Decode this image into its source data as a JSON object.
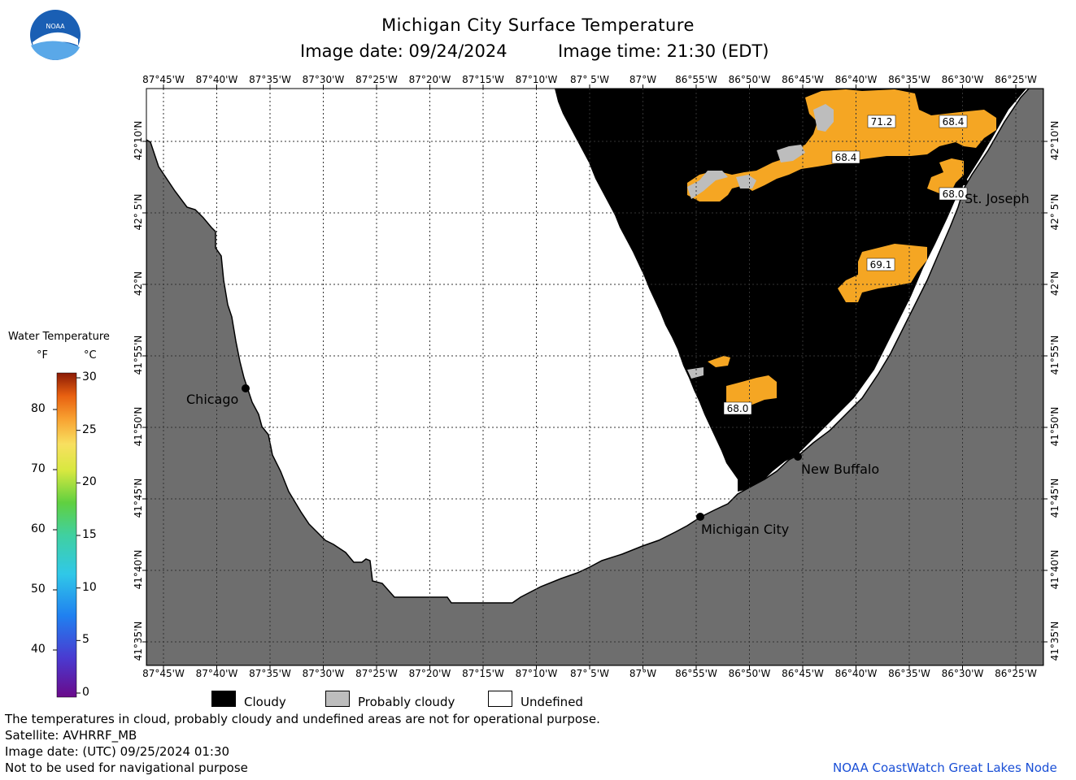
{
  "title": "Michigan City Surface Temperature",
  "image_date_local": "Image date: 09/24/2024",
  "image_time_local": "Image time: 21:30 (EDT)",
  "logo_text": "NOAA",
  "longitude_labels": [
    "87°45'W",
    "87°40'W",
    "87°35'W",
    "87°30'W",
    "87°25'W",
    "87°20'W",
    "87°15'W",
    "87°10'W",
    "87° 5'W",
    "87°W",
    "86°55'W",
    "86°50'W",
    "86°45'W",
    "86°40'W",
    "86°35'W",
    "86°30'W",
    "86°25'W"
  ],
  "latitude_labels": [
    "42°10'N",
    "42° 5'N",
    "42°N",
    "41°55'N",
    "41°50'N",
    "41°45'N",
    "41°40'N",
    "41°35'N"
  ],
  "cities": [
    {
      "name": "Chicago"
    },
    {
      "name": "St. Joseph"
    },
    {
      "name": "New Buffalo"
    },
    {
      "name": "Michigan City"
    }
  ],
  "temperature_labels": [
    "71.2",
    "68.4",
    "68.4",
    "68.0",
    "69.1",
    "68.0"
  ],
  "colorbar": {
    "title": "Water Temperature",
    "unit_f": "°F",
    "unit_c": "°C",
    "f_ticks": [
      "80",
      "70",
      "60",
      "50",
      "40"
    ],
    "c_ticks": [
      "30",
      "25",
      "20",
      "15",
      "10",
      "5",
      "0"
    ]
  },
  "legend": {
    "cloudy": "Cloudy",
    "probably_cloudy": "Probably cloudy",
    "undefined": "Undefined",
    "colors": {
      "cloudy": "#000000",
      "probably_cloudy": "#bdbdbd",
      "undefined": "#ffffff"
    }
  },
  "footer": {
    "note": "The temperatures in cloud, probably cloudy and undefined areas are not for operational purpose.",
    "satellite": "Satellite: AVHRRF_MB",
    "image_date_utc": "Image date: (UTC) 09/25/2024  01:30",
    "disclaimer": "Not to be used for navigational purpose",
    "credit": "NOAA CoastWatch Great Lakes Node"
  },
  "colors": {
    "land": "#6e6e6e",
    "sst_orange": "#f5a623",
    "credit_blue": "#1a4fd6",
    "noaa_blue": "#1a5fb4"
  }
}
